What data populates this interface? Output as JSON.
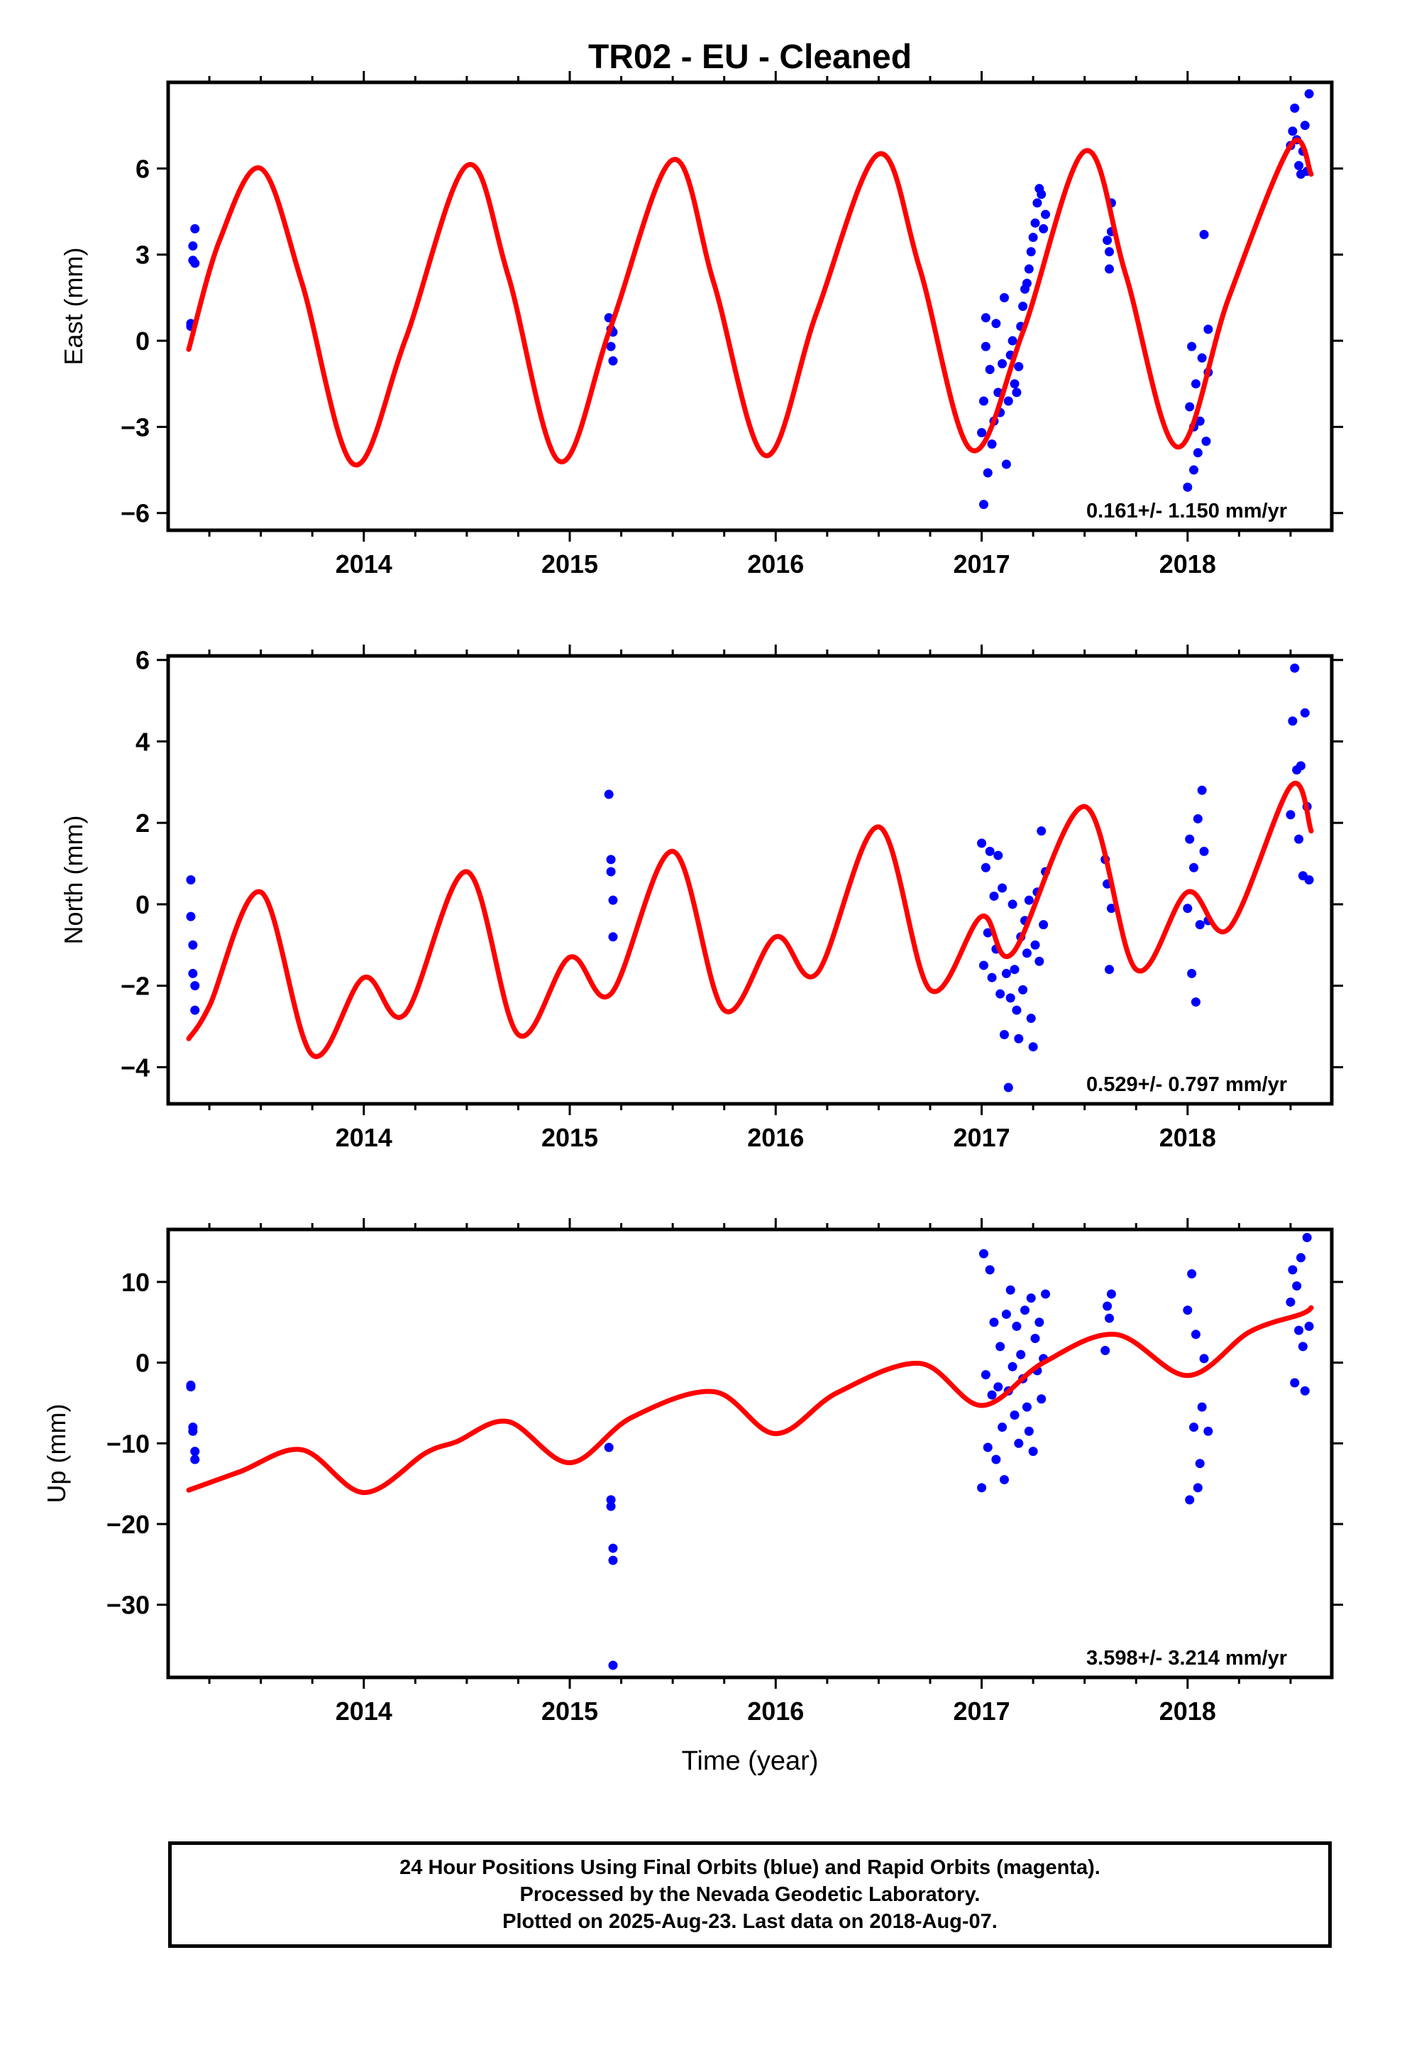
{
  "title": "TR02  - EU - Cleaned",
  "footer": {
    "line1": "24 Hour Positions Using Final Orbits (blue) and Rapid Orbits (magenta).",
    "line2": "Processed by the Nevada Geodetic Laboratory.",
    "line3": "Plotted on 2025-Aug-23. Last data on 2018-Aug-07."
  },
  "colors": {
    "points": "#0000ff",
    "model": "#ff0000",
    "axes": "#000000"
  },
  "chart_data": [
    {
      "type": "scatter",
      "ylabel": "East (mm)",
      "xlabel": "",
      "rate": "0.161+/- 1.150 mm/yr",
      "xlim": [
        2013.05,
        2018.7
      ],
      "ylim": [
        -6.6,
        9.0
      ],
      "xticks": [
        2014,
        2015,
        2016,
        2017,
        2018
      ],
      "yticks": [
        -6,
        -3,
        0,
        3,
        6
      ],
      "model": {
        "name": "",
        "x": [
          2013.15,
          2013.3,
          2013.5,
          2013.7,
          2013.95,
          2014.2,
          2014.5,
          2014.7,
          2014.95,
          2015.2,
          2015.5,
          2015.7,
          2015.95,
          2016.2,
          2016.5,
          2016.7,
          2016.95,
          2017.2,
          2017.5,
          2017.7,
          2017.95,
          2018.2,
          2018.5,
          2018.6
        ],
        "y": [
          -0.3,
          3.5,
          6.0,
          2.0,
          -4.3,
          0.0,
          6.1,
          2.3,
          -4.2,
          0.5,
          6.3,
          2.0,
          -4.0,
          1.0,
          6.5,
          2.5,
          -3.8,
          0.3,
          6.6,
          2.3,
          -3.7,
          1.5,
          6.8,
          5.8
        ]
      },
      "points": {
        "x": [
          2013.16,
          2013.16,
          2013.17,
          2013.17,
          2013.18,
          2013.18,
          2015.19,
          2015.2,
          2015.2,
          2015.21,
          2015.21,
          2017.0,
          2017.01,
          2017.01,
          2017.02,
          2017.02,
          2017.03,
          2017.04,
          2017.05,
          2017.06,
          2017.07,
          2017.08,
          2017.09,
          2017.1,
          2017.11,
          2017.12,
          2017.13,
          2017.14,
          2017.15,
          2017.16,
          2017.17,
          2017.18,
          2017.19,
          2017.2,
          2017.21,
          2017.22,
          2017.23,
          2017.24,
          2017.25,
          2017.26,
          2017.27,
          2017.28,
          2017.29,
          2017.3,
          2017.31,
          2017.61,
          2017.62,
          2017.62,
          2017.63,
          2017.63,
          2018.0,
          2018.01,
          2018.02,
          2018.03,
          2018.03,
          2018.04,
          2018.05,
          2018.06,
          2018.07,
          2018.08,
          2018.09,
          2018.1,
          2018.1,
          2018.5,
          2018.51,
          2018.52,
          2018.53,
          2018.54,
          2018.55,
          2018.56,
          2018.57,
          2018.58,
          2018.59
        ],
        "y": [
          0.5,
          0.6,
          2.8,
          3.3,
          3.9,
          2.7,
          0.8,
          0.4,
          -0.2,
          -0.7,
          0.3,
          -3.2,
          -5.7,
          -2.1,
          -0.2,
          0.8,
          -4.6,
          -1.0,
          -3.6,
          -2.8,
          0.6,
          -1.8,
          -2.5,
          -0.8,
          1.5,
          -4.3,
          -2.1,
          -0.5,
          0.0,
          -1.5,
          -1.8,
          -0.9,
          0.5,
          1.2,
          1.8,
          2.0,
          2.5,
          3.1,
          3.6,
          4.1,
          4.8,
          5.3,
          5.1,
          3.9,
          4.4,
          3.5,
          2.5,
          3.1,
          4.8,
          3.8,
          -5.1,
          -2.3,
          -0.2,
          -4.5,
          -3.0,
          -1.5,
          -3.9,
          -2.8,
          -0.6,
          3.7,
          -3.5,
          0.4,
          -1.1,
          6.8,
          7.3,
          8.1,
          7.0,
          6.1,
          5.8,
          6.6,
          7.5,
          5.9,
          8.6
        ]
      }
    },
    {
      "type": "scatter",
      "ylabel": "North (mm)",
      "xlabel": "",
      "rate": "0.529+/- 0.797 mm/yr",
      "xlim": [
        2013.05,
        2018.7
      ],
      "ylim": [
        -4.9,
        6.1
      ],
      "xticks": [
        2014,
        2015,
        2016,
        2017,
        2018
      ],
      "yticks": [
        -4,
        -2,
        0,
        2,
        4,
        6
      ],
      "model": {
        "name": "",
        "x": [
          2013.15,
          2013.25,
          2013.5,
          2013.75,
          2014.0,
          2014.2,
          2014.5,
          2014.75,
          2015.0,
          2015.2,
          2015.5,
          2015.75,
          2016.0,
          2016.2,
          2016.5,
          2016.75,
          2017.0,
          2017.15,
          2017.5,
          2017.75,
          2018.0,
          2018.2,
          2018.5,
          2018.6
        ],
        "y": [
          -3.3,
          -2.5,
          0.3,
          -3.7,
          -1.8,
          -2.7,
          0.8,
          -3.2,
          -1.3,
          -2.2,
          1.3,
          -2.6,
          -0.8,
          -1.7,
          1.9,
          -2.1,
          -0.3,
          -1.2,
          2.4,
          -1.6,
          0.3,
          -0.6,
          2.9,
          1.8
        ]
      },
      "points": {
        "x": [
          2013.16,
          2013.16,
          2013.17,
          2013.17,
          2013.18,
          2013.18,
          2015.19,
          2015.2,
          2015.2,
          2015.21,
          2015.21,
          2017.0,
          2017.01,
          2017.02,
          2017.03,
          2017.04,
          2017.05,
          2017.06,
          2017.07,
          2017.08,
          2017.09,
          2017.1,
          2017.11,
          2017.12,
          2017.13,
          2017.14,
          2017.15,
          2017.16,
          2017.17,
          2017.18,
          2017.19,
          2017.2,
          2017.21,
          2017.22,
          2017.23,
          2017.24,
          2017.25,
          2017.26,
          2017.27,
          2017.28,
          2017.29,
          2017.3,
          2017.31,
          2017.6,
          2017.61,
          2017.62,
          2017.63,
          2018.0,
          2018.01,
          2018.02,
          2018.03,
          2018.04,
          2018.05,
          2018.06,
          2018.07,
          2018.08,
          2018.1,
          2018.5,
          2018.51,
          2018.52,
          2018.53,
          2018.54,
          2018.55,
          2018.56,
          2018.57,
          2018.58,
          2018.59
        ],
        "y": [
          0.6,
          -0.3,
          -1.0,
          -1.7,
          -2.0,
          -2.6,
          2.7,
          1.1,
          0.8,
          0.1,
          -0.8,
          1.5,
          -1.5,
          0.9,
          -0.7,
          1.3,
          -1.8,
          0.2,
          -1.1,
          1.2,
          -2.2,
          0.4,
          -3.2,
          -1.7,
          -4.5,
          -2.3,
          0.0,
          -1.6,
          -2.6,
          -3.3,
          -0.8,
          -2.1,
          -0.4,
          -1.2,
          0.1,
          -2.8,
          -3.5,
          -1.0,
          0.3,
          -1.4,
          1.8,
          -0.5,
          0.8,
          1.1,
          0.5,
          -1.6,
          -0.1,
          -0.1,
          1.6,
          -1.7,
          0.9,
          -2.4,
          2.1,
          -0.5,
          2.8,
          1.3,
          -0.4,
          2.2,
          4.5,
          5.8,
          3.3,
          1.6,
          3.4,
          0.7,
          4.7,
          2.4,
          0.6
        ]
      }
    },
    {
      "type": "scatter",
      "ylabel": "Up (mm)",
      "xlabel": "Time (year)",
      "rate": "3.598+/- 3.214 mm/yr",
      "xlim": [
        2013.05,
        2018.7
      ],
      "ylim": [
        -39,
        16.5
      ],
      "xticks": [
        2014,
        2015,
        2016,
        2017,
        2018
      ],
      "yticks": [
        -30,
        -20,
        -10,
        0,
        10
      ],
      "model": {
        "name": "",
        "x": [
          2013.15,
          2013.4,
          2013.7,
          2014.0,
          2014.3,
          2014.45,
          2014.7,
          2015.0,
          2015.3,
          2015.7,
          2016.0,
          2016.3,
          2016.7,
          2017.0,
          2017.3,
          2017.65,
          2018.0,
          2018.3,
          2018.55,
          2018.6
        ],
        "y": [
          -15.8,
          -13.5,
          -10.8,
          -16.1,
          -11.2,
          -9.8,
          -7.3,
          -12.4,
          -6.8,
          -3.6,
          -8.8,
          -3.7,
          -0.1,
          -5.3,
          0.0,
          3.5,
          -1.6,
          3.8,
          6.0,
          6.8
        ]
      },
      "points": {
        "x": [
          2013.16,
          2013.16,
          2013.17,
          2013.17,
          2013.18,
          2013.18,
          2015.19,
          2015.2,
          2015.2,
          2015.21,
          2015.21,
          2015.21,
          2017.0,
          2017.01,
          2017.02,
          2017.03,
          2017.04,
          2017.05,
          2017.06,
          2017.07,
          2017.08,
          2017.09,
          2017.1,
          2017.11,
          2017.12,
          2017.13,
          2017.14,
          2017.15,
          2017.16,
          2017.17,
          2017.18,
          2017.19,
          2017.2,
          2017.21,
          2017.22,
          2017.23,
          2017.24,
          2017.25,
          2017.26,
          2017.27,
          2017.28,
          2017.29,
          2017.3,
          2017.31,
          2017.6,
          2017.61,
          2017.62,
          2017.63,
          2018.0,
          2018.01,
          2018.02,
          2018.03,
          2018.04,
          2018.05,
          2018.06,
          2018.07,
          2018.08,
          2018.1,
          2018.5,
          2018.51,
          2018.52,
          2018.53,
          2018.54,
          2018.55,
          2018.56,
          2018.57,
          2018.58,
          2018.59
        ],
        "y": [
          -2.8,
          -3.0,
          -8.0,
          -8.5,
          -11.0,
          -12.0,
          -10.5,
          -17.0,
          -17.8,
          -23.0,
          -24.5,
          -37.5,
          -15.5,
          13.5,
          -1.5,
          -10.5,
          11.5,
          -4.0,
          5.0,
          -12.0,
          -3.0,
          2.0,
          -8.0,
          -14.5,
          6.0,
          -3.5,
          9.0,
          -0.5,
          -6.5,
          4.5,
          -10.0,
          1.0,
          -2.0,
          6.5,
          -5.5,
          -8.5,
          8.0,
          -11.0,
          3.0,
          -1.0,
          5.0,
          -4.5,
          0.5,
          8.5,
          1.5,
          7.0,
          5.5,
          8.5,
          6.5,
          -17.0,
          11.0,
          -8.0,
          3.5,
          -15.5,
          -12.5,
          -5.5,
          0.5,
          -8.5,
          7.5,
          11.5,
          -2.5,
          9.5,
          4.0,
          13.0,
          2.0,
          -3.5,
          15.5,
          4.5
        ]
      }
    }
  ]
}
